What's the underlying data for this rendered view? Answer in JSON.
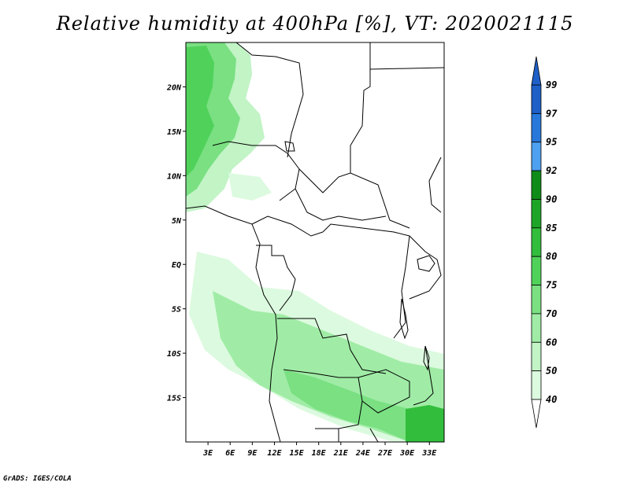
{
  "title": "Relative humidity at 400hPa [%], VT: 2020021115",
  "credit": "GrADS: IGES/COLA",
  "map": {
    "lat_labels": [
      "20N",
      "15N",
      "10N",
      "5N",
      "EQ",
      "5S",
      "10S",
      "15S"
    ],
    "lat_values": [
      20,
      15,
      10,
      5,
      0,
      -5,
      -10,
      -15
    ],
    "lon_labels": [
      "3E",
      "6E",
      "9E",
      "12E",
      "15E",
      "18E",
      "21E",
      "24E",
      "27E",
      "30E",
      "33E"
    ],
    "lon_values": [
      3,
      6,
      9,
      12,
      15,
      18,
      21,
      24,
      27,
      30,
      33
    ],
    "lon_range": [
      0,
      35
    ],
    "lat_range": [
      -20,
      25
    ]
  },
  "colorbar": {
    "levels": [
      "99",
      "97",
      "95",
      "92",
      "90",
      "85",
      "80",
      "75",
      "70",
      "60",
      "50",
      "40"
    ],
    "colors": [
      "#1e5fc8",
      "#2878dc",
      "#4ea0f0",
      "#0f8c18",
      "#1ea528",
      "#32be3c",
      "#50d25a",
      "#7ae082",
      "#a0eca6",
      "#c2f4c6",
      "#dcfadf",
      "#f0fff0"
    ],
    "top_arrow_color": "#1e5fc8",
    "bottom_arrow_color": "#ffffff"
  }
}
